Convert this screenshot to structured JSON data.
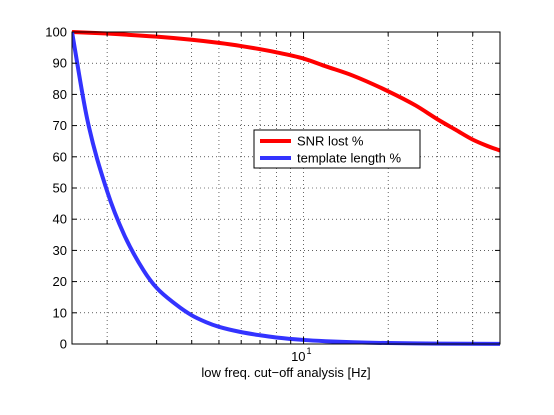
{
  "chart_data": {
    "type": "line",
    "xlabel": "low freq. cut−off analysis [Hz]",
    "ylabel": "",
    "title": "",
    "x_scale": "log",
    "xlim": [
      1.5,
      50
    ],
    "ylim": [
      0,
      100
    ],
    "grid": true,
    "legend_position": "center-right",
    "x_ticks": [
      {
        "base": "10",
        "exp": "1"
      }
    ],
    "y_ticks": [
      "0",
      "10",
      "20",
      "30",
      "40",
      "50",
      "60",
      "70",
      "80",
      "90",
      "100"
    ],
    "series": [
      {
        "name": "SNR lost %",
        "color": "#ff0000",
        "x": [
          1.5,
          2,
          3,
          4,
          5,
          6,
          8,
          10,
          12,
          15,
          20,
          25,
          30,
          35,
          40,
          45,
          50
        ],
        "y": [
          100,
          99.5,
          98.5,
          97.5,
          96.5,
          95.5,
          93.5,
          91.5,
          89,
          86,
          81,
          76.5,
          72,
          68.5,
          65.5,
          63.5,
          62
        ]
      },
      {
        "name": "template length %",
        "color": "#3333ff",
        "x": [
          1.5,
          1.7,
          2,
          2.3,
          2.7,
          3,
          3.5,
          4,
          4.5,
          5,
          6,
          7,
          8,
          10,
          12,
          15,
          20,
          30,
          50
        ],
        "y": [
          100,
          72,
          49,
          35,
          23.5,
          18,
          12.8,
          9.2,
          7,
          5.5,
          3.8,
          2.8,
          2.1,
          1.3,
          0.9,
          0.55,
          0.3,
          0.12,
          0.03
        ]
      }
    ]
  }
}
